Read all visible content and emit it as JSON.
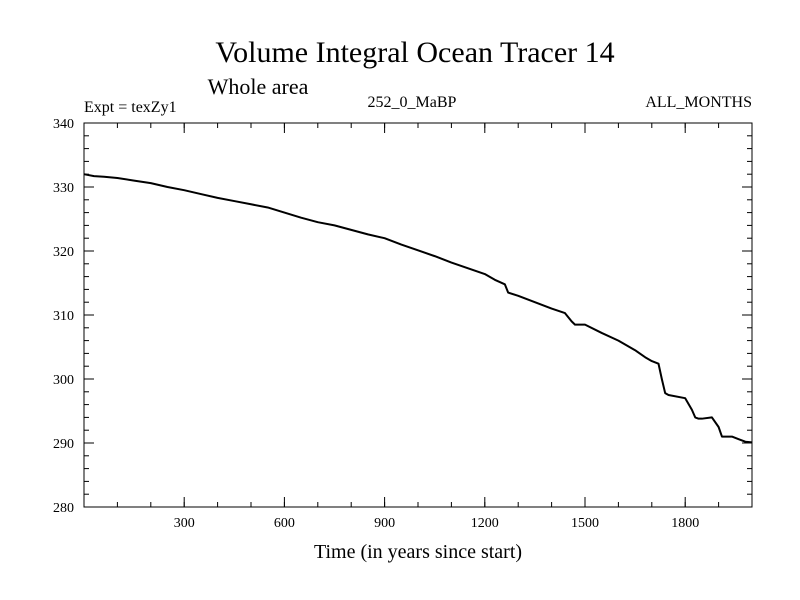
{
  "chart_data": {
    "type": "line",
    "title": "Volume Integral Ocean Tracer 14",
    "subtitle": "Whole area",
    "experiment_label": "Expt = texZy1",
    "run_label": "252_0_MaBP",
    "months_label": "ALL_MONTHS",
    "xlabel": "Time (in years since start)",
    "ylabel": "",
    "xlim": [
      0,
      2000
    ],
    "ylim": [
      280,
      340
    ],
    "xticks": [
      300,
      600,
      900,
      1200,
      1500,
      1800
    ],
    "xtick_labels": [
      "300",
      "600",
      "900",
      "1200",
      "1500",
      "1800"
    ],
    "yticks": [
      280,
      290,
      300,
      310,
      320,
      330,
      340
    ],
    "ytick_labels": [
      "280",
      "290",
      "300",
      "310",
      "320",
      "330",
      "340"
    ],
    "grid": false,
    "series": [
      {
        "name": "Tracer 14",
        "color": "#000000",
        "x": [
          0,
          30,
          60,
          100,
          150,
          200,
          250,
          300,
          350,
          400,
          450,
          500,
          550,
          600,
          650,
          700,
          750,
          800,
          850,
          900,
          950,
          1000,
          1050,
          1100,
          1150,
          1200,
          1230,
          1260,
          1270,
          1300,
          1350,
          1400,
          1440,
          1460,
          1470,
          1500,
          1550,
          1600,
          1650,
          1680,
          1700,
          1720,
          1730,
          1740,
          1750,
          1800,
          1820,
          1830,
          1840,
          1850,
          1880,
          1900,
          1910,
          1940,
          1960,
          1980,
          2000
        ],
        "y": [
          332.0,
          331.7,
          331.6,
          331.4,
          331.0,
          330.6,
          330.0,
          329.5,
          328.9,
          328.3,
          327.8,
          327.3,
          326.8,
          326.0,
          325.2,
          324.5,
          324.0,
          323.3,
          322.6,
          322.0,
          321.0,
          320.1,
          319.2,
          318.2,
          317.3,
          316.4,
          315.5,
          314.8,
          313.5,
          313.0,
          312.0,
          311.0,
          310.3,
          309.0,
          308.5,
          308.5,
          307.2,
          306.0,
          304.5,
          303.4,
          302.8,
          302.4,
          300.0,
          297.8,
          297.5,
          297.0,
          295.2,
          294.0,
          293.8,
          293.8,
          294.0,
          292.5,
          291.0,
          291.0,
          290.6,
          290.2,
          290.1
        ]
      }
    ]
  }
}
